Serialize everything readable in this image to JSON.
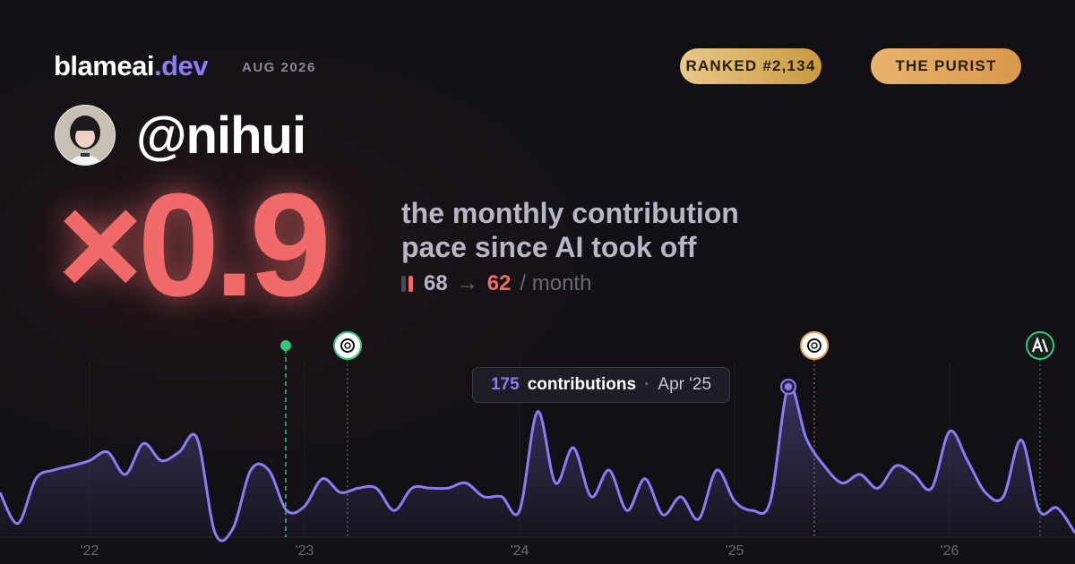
{
  "header": {
    "brand": "blameai",
    "brand_tld": ".dev",
    "date": "AUG 2026",
    "rank_badge": "RANKED #2,134",
    "title_badge": "THE PURIST"
  },
  "profile": {
    "username": "@nihui"
  },
  "summary": {
    "multiplier": "×0.9",
    "description_lines": [
      "the monthly contribution",
      "pace since AI took off"
    ],
    "pace_from": 68,
    "arrow": "→",
    "pace_to": 62,
    "pace_unit": "/ month"
  },
  "chart_data": {
    "type": "area",
    "color": "#8b7cf6",
    "categories": [
      null,
      null,
      null,
      null,
      null,
      "'22",
      null,
      null,
      null,
      null,
      null,
      null,
      null,
      null,
      null,
      null,
      null,
      "'23",
      null,
      null,
      null,
      null,
      null,
      null,
      null,
      null,
      null,
      null,
      null,
      "'24",
      null,
      null,
      null,
      null,
      null,
      null,
      null,
      null,
      null,
      null,
      null,
      "'25",
      null,
      null,
      null,
      null,
      null,
      null,
      null,
      null,
      null,
      null,
      null,
      "'26",
      null,
      null,
      null,
      null,
      null,
      null,
      null
    ],
    "values": [
      52,
      16,
      68,
      78,
      83,
      89,
      99,
      73,
      109,
      89,
      99,
      115,
      5,
      10,
      78,
      78,
      31,
      36,
      68,
      52,
      57,
      57,
      31,
      57,
      57,
      57,
      63,
      47,
      47,
      31,
      146,
      63,
      104,
      47,
      78,
      31,
      68,
      26,
      47,
      21,
      78,
      42,
      31,
      42,
      175,
      115,
      83,
      63,
      73,
      57,
      83,
      73,
      57,
      123,
      89,
      52,
      47,
      113,
      31,
      34,
      5
    ],
    "tooltip": {
      "value": 175,
      "label": "contributions",
      "date": "Apr '25"
    }
  }
}
